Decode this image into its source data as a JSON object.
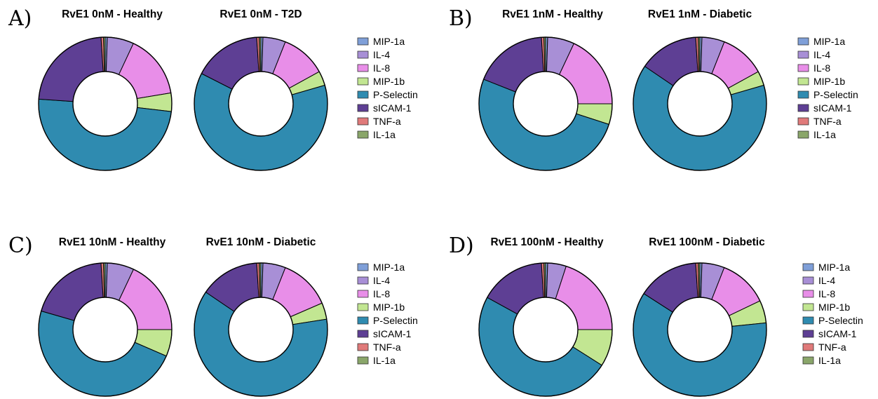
{
  "panel_letters": [
    "A)",
    "B)",
    "C)",
    "D)"
  ],
  "series_colors": {
    "MIP-1a": "#7f9fd8",
    "IL-4": "#a88fd6",
    "IL-8": "#e88ee8",
    "MIP-1b": "#c2e692",
    "P-Selectin": "#2f8bb0",
    "sICAM-1": "#5e3f94",
    "TNF-a": "#e07a7a",
    "IL-1a": "#8aa66a"
  },
  "chart_data": [
    {
      "type": "pie",
      "title": "RvE1 0nM - Healthy",
      "categories": [
        "MIP-1a",
        "IL-4",
        "IL-8",
        "MIP-1b",
        "P-Selectin",
        "sICAM-1",
        "TNF-a",
        "IL-1a"
      ],
      "values": [
        0.5,
        6.5,
        15.5,
        4.5,
        49.5,
        23.0,
        0.6,
        0.4
      ]
    },
    {
      "type": "pie",
      "title": "RvE1 0nM - T2D",
      "categories": [
        "MIP-1a",
        "IL-4",
        "IL-8",
        "MIP-1b",
        "P-Selectin",
        "sICAM-1",
        "TNF-a",
        "IL-1a"
      ],
      "values": [
        0.5,
        5.5,
        11.0,
        3.5,
        62.0,
        16.5,
        0.6,
        0.4
      ]
    },
    {
      "type": "pie",
      "title": "RvE1 1nM - Healthy",
      "categories": [
        "MIP-1a",
        "IL-4",
        "IL-8",
        "MIP-1b",
        "P-Selectin",
        "sICAM-1",
        "TNF-a",
        "IL-1a"
      ],
      "values": [
        0.5,
        6.5,
        18.0,
        5.0,
        51.0,
        18.0,
        0.6,
        0.4
      ]
    },
    {
      "type": "pie",
      "title": "RvE1 1nM - Diabetic",
      "categories": [
        "MIP-1a",
        "IL-4",
        "IL-8",
        "MIP-1b",
        "P-Selectin",
        "sICAM-1",
        "TNF-a",
        "IL-1a"
      ],
      "values": [
        0.5,
        5.5,
        11.0,
        3.5,
        64.0,
        14.5,
        0.6,
        0.4
      ]
    },
    {
      "type": "pie",
      "title": "RvE1 10nM - Healthy",
      "categories": [
        "MIP-1a",
        "IL-4",
        "IL-8",
        "MIP-1b",
        "P-Selectin",
        "sICAM-1",
        "TNF-a",
        "IL-1a"
      ],
      "values": [
        0.5,
        6.5,
        18.0,
        6.5,
        48.0,
        19.5,
        0.6,
        0.4
      ]
    },
    {
      "type": "pie",
      "title": "RvE1 10nM - Diabetic",
      "categories": [
        "MIP-1a",
        "IL-4",
        "IL-8",
        "MIP-1b",
        "P-Selectin",
        "sICAM-1",
        "TNF-a",
        "IL-1a"
      ],
      "values": [
        0.5,
        5.5,
        12.5,
        4.0,
        62.0,
        14.5,
        0.6,
        0.4
      ]
    },
    {
      "type": "pie",
      "title": "RvE1 100nM - Healthy",
      "categories": [
        "MIP-1a",
        "IL-4",
        "IL-8",
        "MIP-1b",
        "P-Selectin",
        "sICAM-1",
        "TNF-a",
        "IL-1a"
      ],
      "values": [
        0.5,
        4.5,
        20.0,
        9.0,
        49.0,
        16.0,
        0.6,
        0.4
      ]
    },
    {
      "type": "pie",
      "title": "RvE1 100nM - Diabetic",
      "categories": [
        "MIP-1a",
        "IL-4",
        "IL-8",
        "MIP-1b",
        "P-Selectin",
        "sICAM-1",
        "TNF-a",
        "IL-1a"
      ],
      "values": [
        0.5,
        5.5,
        12.0,
        5.5,
        61.0,
        15.0,
        0.6,
        0.4
      ]
    }
  ]
}
